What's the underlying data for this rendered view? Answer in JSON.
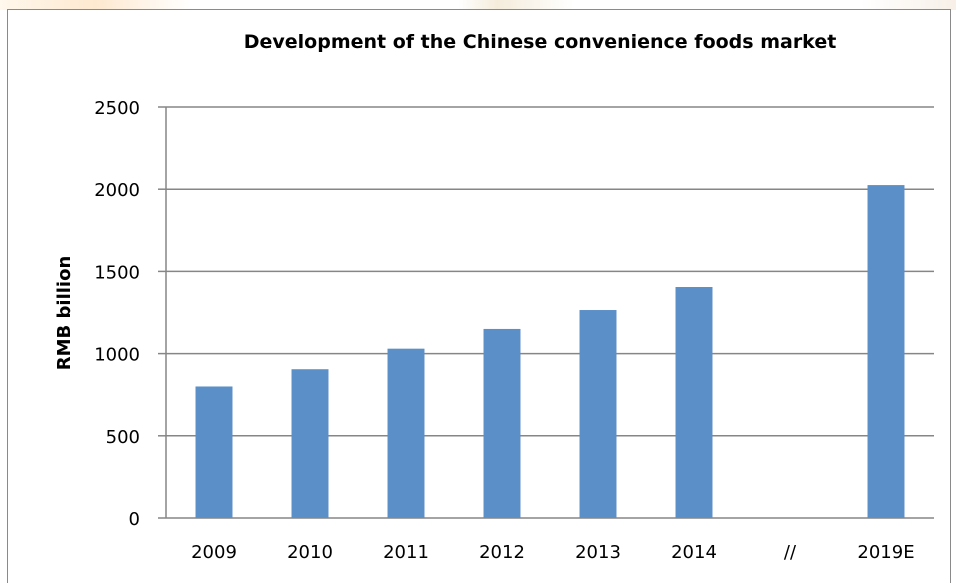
{
  "chart_data": {
    "type": "bar",
    "title": "Development of the Chinese convenience foods market",
    "xlabel": "",
    "ylabel": "RMB billion",
    "categories": [
      "2009",
      "2010",
      "2011",
      "2012",
      "2013",
      "2014",
      "//",
      "2019E"
    ],
    "values": [
      800,
      905,
      1030,
      1150,
      1265,
      1405,
      null,
      2025
    ],
    "ylim": [
      0,
      2500
    ],
    "yticks": [
      0,
      500,
      1000,
      1500,
      2000,
      2500
    ],
    "ytick_labels": [
      "0",
      "500",
      "1000",
      "1500",
      "2000",
      "2500"
    ],
    "grid": "horizontal",
    "legend": "none",
    "bar_color": "#5B8FC8",
    "grid_color": "#868686"
  }
}
